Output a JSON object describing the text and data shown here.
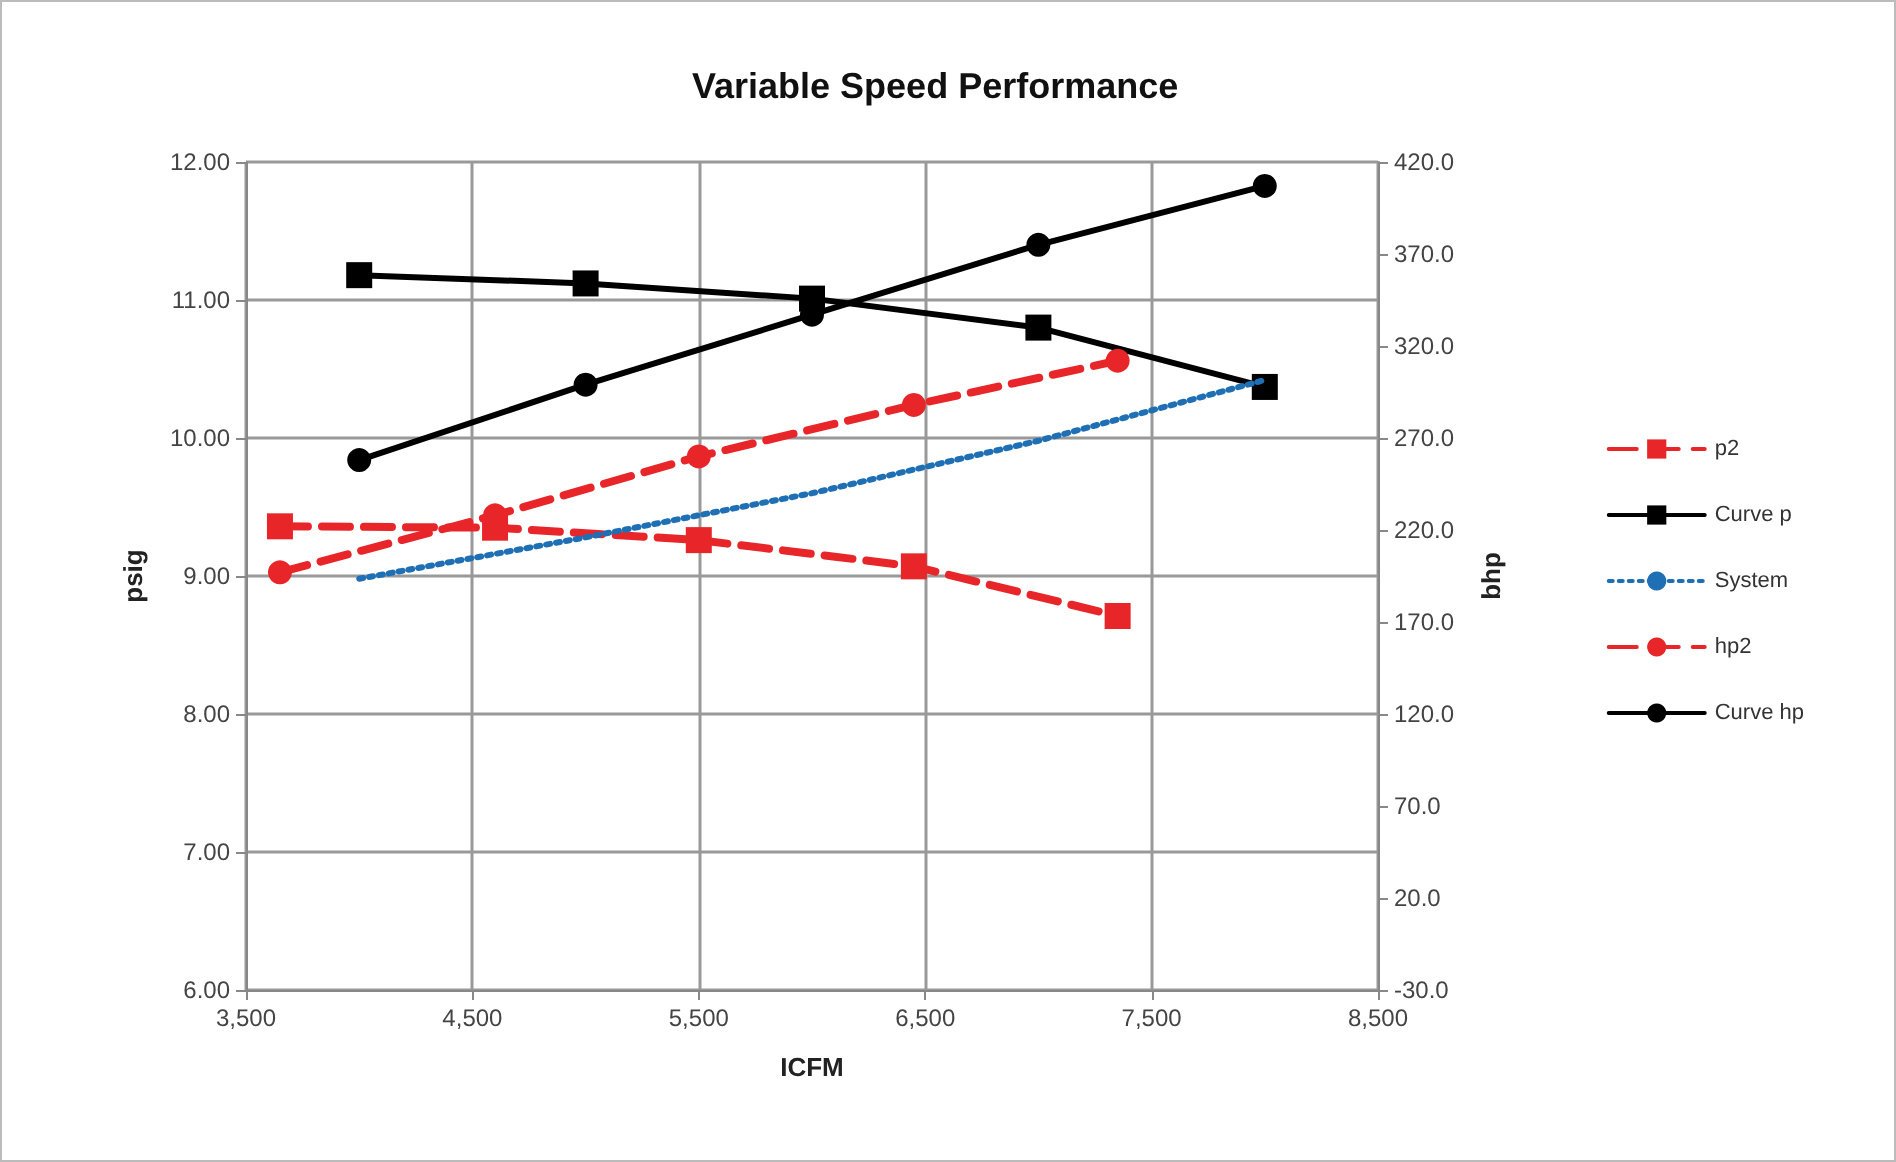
{
  "chart_data": {
    "type": "line",
    "title": "Variable Speed Performance",
    "xlabel": "ICFM",
    "ylabel": "psig",
    "y2label": "bhp",
    "xlim": [
      3500,
      8500
    ],
    "xticks": [
      {
        "value": 3500,
        "label": "3,500"
      },
      {
        "value": 4500,
        "label": "4,500"
      },
      {
        "value": 5500,
        "label": "5,500"
      },
      {
        "value": 6500,
        "label": "6,500"
      },
      {
        "value": 7500,
        "label": "7,500"
      },
      {
        "value": 8500,
        "label": "8,500"
      }
    ],
    "ylim": [
      6,
      12
    ],
    "yticks": [
      {
        "value": 6,
        "label": "6.00"
      },
      {
        "value": 7,
        "label": "7.00"
      },
      {
        "value": 8,
        "label": "8.00"
      },
      {
        "value": 9,
        "label": "9.00"
      },
      {
        "value": 10,
        "label": "10.00"
      },
      {
        "value": 11,
        "label": "11.00"
      },
      {
        "value": 12,
        "label": "12.00"
      }
    ],
    "y2lim": [
      -30,
      420
    ],
    "y2ticks": [
      {
        "value": -30,
        "label": "-30.0"
      },
      {
        "value": 20,
        "label": "20.0"
      },
      {
        "value": 70,
        "label": "70.0"
      },
      {
        "value": 120,
        "label": "120.0"
      },
      {
        "value": 170,
        "label": "170.0"
      },
      {
        "value": 220,
        "label": "220.0"
      },
      {
        "value": 270,
        "label": "270.0"
      },
      {
        "value": 320,
        "label": "320.0"
      },
      {
        "value": 370,
        "label": "370.0"
      },
      {
        "value": 420,
        "label": "420.0"
      }
    ],
    "grid": true,
    "legend": "right",
    "series": [
      {
        "name": "p2",
        "color": "#e8262a",
        "marker": "square",
        "line_style": "dashed",
        "x": [
          3650,
          4600,
          5500,
          6450,
          7350
        ],
        "values": [
          9.36,
          9.35,
          9.26,
          9.07,
          8.71
        ]
      },
      {
        "name": "Curve p",
        "color": "#000000",
        "marker": "square",
        "line_style": "solid",
        "x": [
          4000,
          5000,
          6000,
          7000,
          8000
        ],
        "values": [
          11.18,
          11.12,
          11.01,
          10.8,
          10.37
        ]
      },
      {
        "name": "System",
        "color": "#1f6fb5",
        "marker": "none",
        "line_style": "dotted",
        "x": [
          4000,
          5000,
          6000,
          7000,
          8000
        ],
        "values": [
          8.98,
          9.28,
          9.6,
          9.98,
          10.42
        ]
      },
      {
        "name": "hp2",
        "color": "#e8262a",
        "marker": "circle",
        "line_style": "dashed",
        "axis": "y2",
        "x": [
          3650,
          4600,
          5500,
          6450,
          7350
        ],
        "values": [
          197,
          228,
          260,
          288,
          312
        ]
      },
      {
        "name": "Curve hp",
        "color": "#000000",
        "marker": "circle",
        "line_style": "solid",
        "axis": "y2",
        "x": [
          4000,
          5000,
          6000,
          7000,
          8000
        ],
        "values": [
          258,
          299,
          337,
          375,
          407
        ]
      }
    ]
  }
}
